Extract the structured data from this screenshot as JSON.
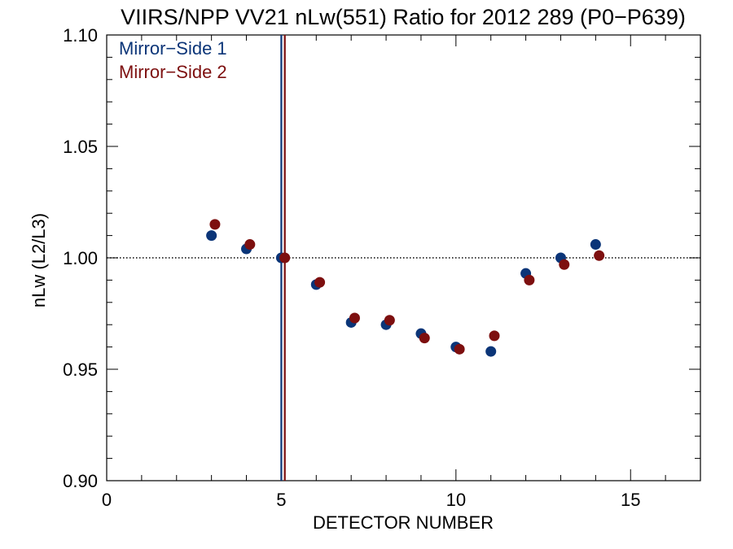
{
  "chart_data": {
    "type": "scatter",
    "title": "VIIRS/NPP VV21 nLw(551) Ratio for 2012 289 (P0−P639)",
    "xlabel": "DETECTOR NUMBER",
    "ylabel": "nLw (L2/L3)",
    "xlim": [
      0,
      17
    ],
    "ylim": [
      0.9,
      1.1
    ],
    "x_ticks": [
      0,
      5,
      10,
      15
    ],
    "x_tick_labels": [
      "0",
      "5",
      "10",
      "15"
    ],
    "y_ticks": [
      0.9,
      0.95,
      1.0,
      1.05,
      1.1
    ],
    "y_tick_labels": [
      "0.90",
      "0.95",
      "1.00",
      "1.05",
      "1.10"
    ],
    "reference_line": {
      "y": 1.0,
      "style": "dotted"
    },
    "legend_position": "top-left",
    "series": [
      {
        "name": "Mirror−Side 1",
        "color": "#0b3578",
        "x": [
          3,
          4,
          5,
          6,
          7,
          8,
          9,
          10,
          11,
          12,
          13,
          14
        ],
        "values": [
          1.01,
          1.004,
          1.0,
          0.988,
          0.971,
          0.97,
          0.966,
          0.96,
          0.958,
          0.993,
          1.0,
          1.006
        ]
      },
      {
        "name": "Mirror−Side 2",
        "color": "#7d0f0f",
        "x": [
          3.1,
          4.1,
          5.1,
          6.1,
          7.1,
          8.1,
          9.1,
          10.1,
          11.1,
          12.1,
          13.1,
          14.1
        ],
        "values": [
          1.015,
          1.006,
          1.0,
          0.989,
          0.973,
          0.972,
          0.964,
          0.959,
          0.965,
          0.99,
          0.997,
          1.001
        ]
      }
    ],
    "vertical_lines": [
      {
        "x": 5.0,
        "color": "#0b3578"
      },
      {
        "x": 5.1,
        "color": "#7d0f0f"
      }
    ]
  }
}
